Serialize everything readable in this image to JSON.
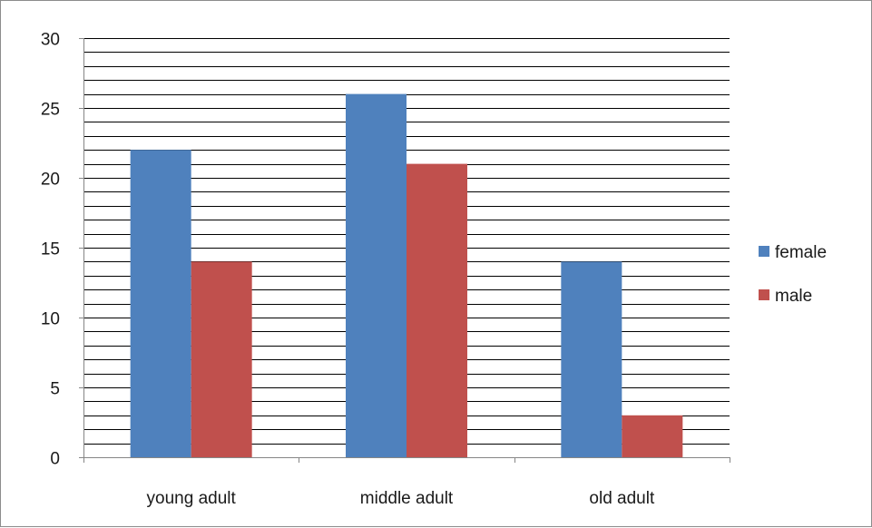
{
  "chart_data": {
    "type": "bar",
    "title": "",
    "xlabel": "",
    "ylabel": "",
    "categories": [
      "young adult",
      "middle adult",
      "old adult"
    ],
    "series": [
      {
        "name": "female",
        "color": "#4f81bd",
        "values": [
          22,
          26,
          14
        ]
      },
      {
        "name": "male",
        "color": "#c0504d",
        "values": [
          14,
          21,
          3
        ]
      }
    ],
    "ylim": [
      0,
      30
    ],
    "y_major_ticks": [
      0,
      5,
      10,
      15,
      20,
      25,
      30
    ],
    "y_minor_step": 1,
    "grid": true,
    "legend_position": "right"
  }
}
